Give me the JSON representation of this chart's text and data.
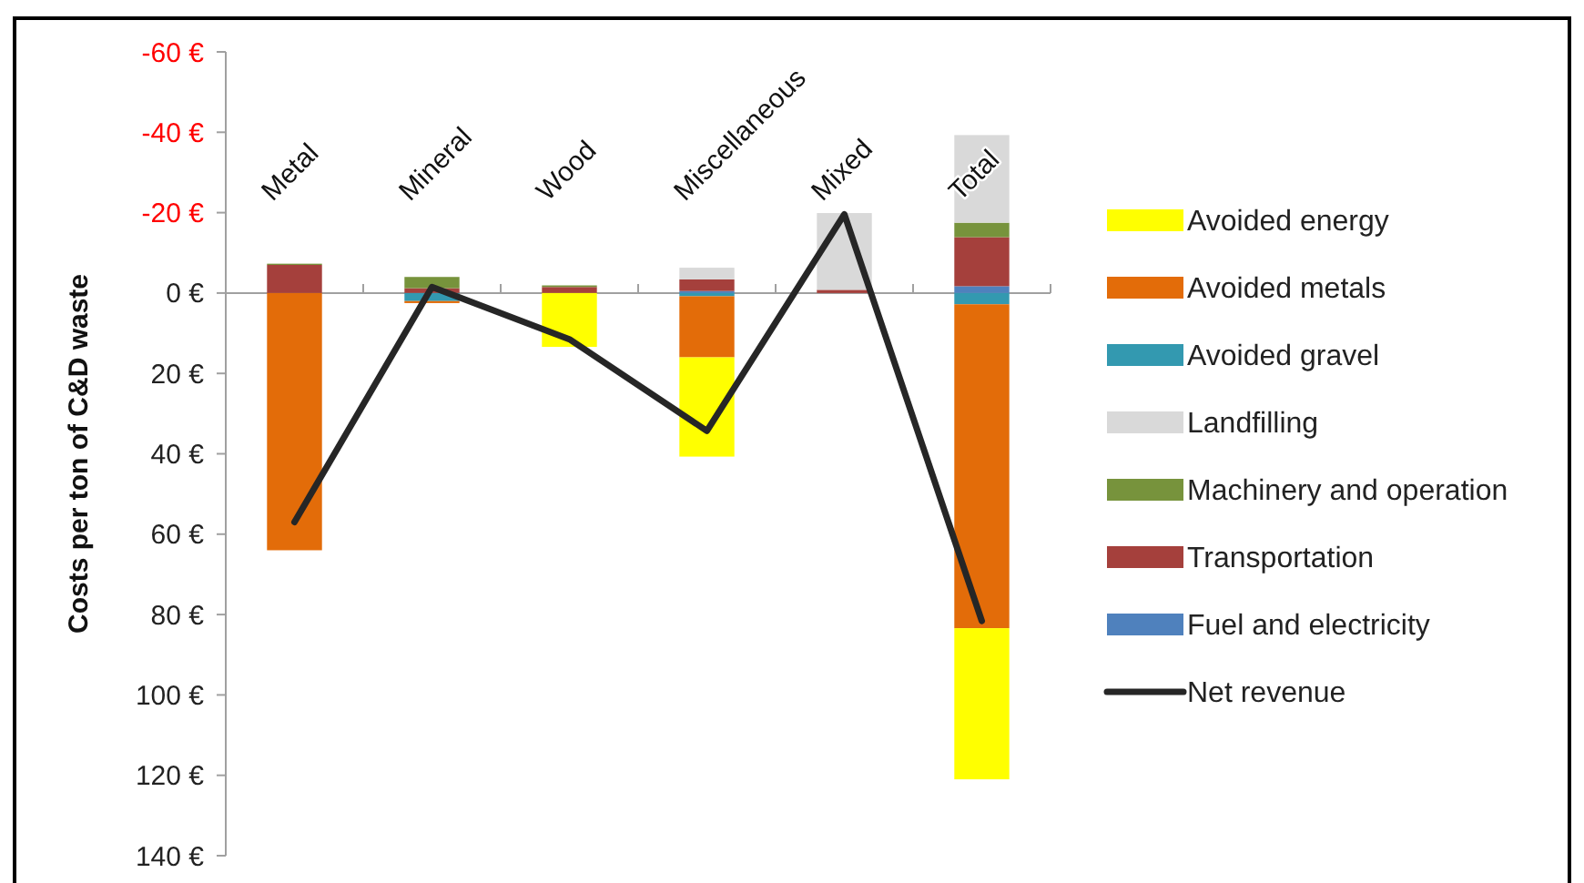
{
  "chart_data": {
    "type": "bar",
    "stacked": true,
    "ylabel": "Costs per ton of C&D waste",
    "categories": [
      "Metal",
      "Mineral",
      "Wood",
      "Miscellaneous",
      "Mixed",
      "Total"
    ],
    "ylim": [
      140,
      -60
    ],
    "yticks": [
      {
        "value": -60,
        "label": "-60 €"
      },
      {
        "value": -40,
        "label": "-40 €"
      },
      {
        "value": -20,
        "label": "-20 €"
      },
      {
        "value": 0,
        "label": "0 €"
      },
      {
        "value": 20,
        "label": "20 €"
      },
      {
        "value": 40,
        "label": "40 €"
      },
      {
        "value": 60,
        "label": "60 €"
      },
      {
        "value": 80,
        "label": "80 €"
      },
      {
        "value": 100,
        "label": "100 €"
      },
      {
        "value": 120,
        "label": "120 €"
      },
      {
        "value": 140,
        "label": "140 €"
      }
    ],
    "legend": "right",
    "series": [
      {
        "name": "Fuel and electricity",
        "color": "#4f81bd",
        "values": [
          null,
          null,
          null,
          -0.5,
          null,
          -1.7
        ]
      },
      {
        "name": "Transportation",
        "color": "#a5403c",
        "values": [
          -7,
          -1.2,
          -1.5,
          -2.9,
          -0.8,
          -12.2
        ]
      },
      {
        "name": "Machinery and operation",
        "color": "#77933c",
        "values": [
          -0.3,
          -2.8,
          -0.4,
          null,
          null,
          -3.6
        ]
      },
      {
        "name": "Landfilling",
        "color": "#d9d9d9",
        "values": [
          null,
          null,
          null,
          -2.9,
          -19.1,
          -21.8
        ]
      },
      {
        "name": "Avoided gravel",
        "color": "#3399b0",
        "values": [
          null,
          2,
          null,
          0.8,
          null,
          2.8
        ]
      },
      {
        "name": "Avoided metals",
        "color": "#e36c09",
        "values": [
          64,
          0.5,
          null,
          15.2,
          null,
          80.6
        ]
      },
      {
        "name": "Avoided energy",
        "color": "#ffff00",
        "values": [
          null,
          null,
          13.4,
          24.7,
          null,
          37.6
        ]
      },
      {
        "name": "Net revenue",
        "type": "line",
        "color": "#262626",
        "marker": "none",
        "values": [
          57,
          -1.5,
          11.5,
          34.3,
          -19.6,
          81.6
        ]
      }
    ]
  }
}
